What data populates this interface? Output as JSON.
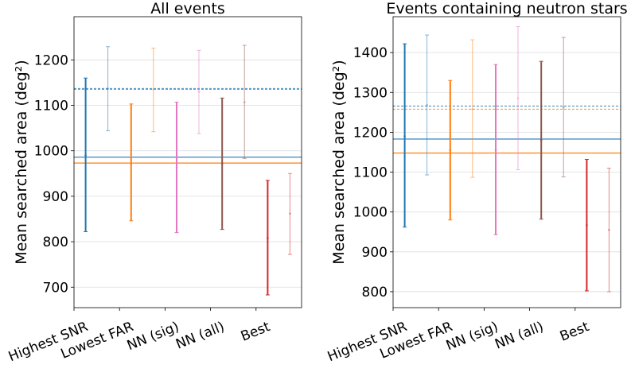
{
  "chart_data": [
    {
      "type": "errorbar",
      "title": "All events",
      "ylabel": "Mean searched area (deg²)",
      "categories": [
        "Highest SNR",
        "Lowest FAR",
        "NN (sig)",
        "NN (all)",
        "Best"
      ],
      "ylim": [
        655,
        1295
      ],
      "yticks": [
        700,
        800,
        900,
        1000,
        1100,
        1200
      ],
      "colors": [
        "#1f77b4",
        "#ff7f0e",
        "#e377c2",
        "#8c564b",
        "#d62728"
      ],
      "series": [
        {
          "name": "solid",
          "style": "solid",
          "center": [
            990,
            972,
            963,
            972,
            808
          ],
          "low": [
            822,
            846,
            820,
            827,
            683
          ],
          "high": [
            1160,
            1103,
            1107,
            1116,
            935
          ]
        },
        {
          "name": "faded",
          "style": "faded",
          "center": [
            1137,
            1135,
            1130,
            1107,
            862
          ],
          "low": [
            1044,
            1042,
            1038,
            983,
            772
          ],
          "high": [
            1229,
            1226,
            1221,
            1232,
            950
          ]
        }
      ],
      "hlines": [
        {
          "y": 986,
          "color": "#1f77b4",
          "style": "solid"
        },
        {
          "y": 973,
          "color": "#ff7f0e",
          "style": "solid"
        },
        {
          "y": 1137,
          "color": "#1f77b4",
          "style": "dashed"
        },
        {
          "y": 1135,
          "color": "#ff7f0e",
          "style": "dashed"
        }
      ]
    },
    {
      "type": "errorbar",
      "title": "Events containing neutron stars",
      "ylabel": "Mean searched area (deg²)",
      "categories": [
        "Highest SNR",
        "Lowest FAR",
        "NN (sig)",
        "NN (all)",
        "Best"
      ],
      "ylim": [
        760,
        1490
      ],
      "yticks": [
        800,
        900,
        1000,
        1100,
        1200,
        1300,
        1400
      ],
      "colors": [
        "#1f77b4",
        "#ff7f0e",
        "#e377c2",
        "#8c564b",
        "#d62728"
      ],
      "series": [
        {
          "name": "solid",
          "style": "solid",
          "center": [
            1190,
            1155,
            1155,
            1180,
            967
          ],
          "low": [
            962,
            980,
            943,
            982,
            802
          ],
          "high": [
            1422,
            1330,
            1370,
            1378,
            1132
          ]
        },
        {
          "name": "faded",
          "style": "faded",
          "center": [
            1268,
            1258,
            1285,
            1262,
            955
          ],
          "low": [
            1093,
            1087,
            1106,
            1088,
            800
          ],
          "high": [
            1444,
            1432,
            1465,
            1438,
            1110
          ]
        }
      ],
      "hlines": [
        {
          "y": 1183,
          "color": "#1f77b4",
          "style": "solid"
        },
        {
          "y": 1148,
          "color": "#ff7f0e",
          "style": "solid"
        },
        {
          "y": 1266,
          "color": "#1f77b4",
          "style": "dashed"
        },
        {
          "y": 1258,
          "color": "#ff7f0e",
          "style": "dashed"
        }
      ]
    }
  ]
}
